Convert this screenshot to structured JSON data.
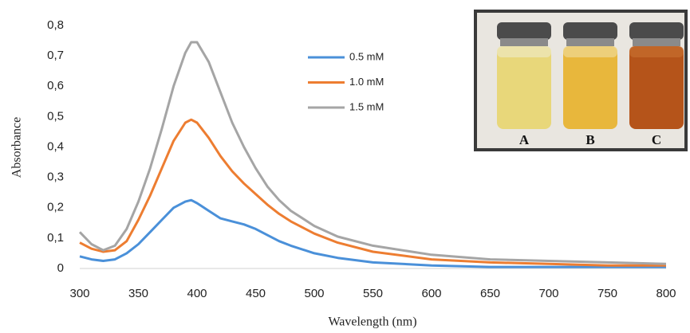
{
  "chart_data": {
    "type": "line",
    "x_label": "Wavelength (nm)",
    "y_label": "Absorbance",
    "x": [
      300,
      310,
      320,
      330,
      340,
      350,
      360,
      370,
      380,
      390,
      395,
      400,
      410,
      420,
      430,
      440,
      450,
      460,
      470,
      480,
      500,
      520,
      550,
      600,
      650,
      700,
      750,
      800
    ],
    "series": [
      {
        "name": "0.5 mM",
        "color": "#4a90d9",
        "values": [
          0.04,
          0.03,
          0.025,
          0.03,
          0.05,
          0.08,
          0.12,
          0.16,
          0.2,
          0.22,
          0.225,
          0.215,
          0.19,
          0.165,
          0.155,
          0.145,
          0.13,
          0.11,
          0.09,
          0.075,
          0.05,
          0.035,
          0.02,
          0.01,
          0.005,
          0.005,
          0.005,
          0.005
        ]
      },
      {
        "name": "1.0 mM",
        "color": "#ed7d31",
        "values": [
          0.085,
          0.065,
          0.055,
          0.06,
          0.09,
          0.16,
          0.24,
          0.33,
          0.42,
          0.48,
          0.49,
          0.48,
          0.43,
          0.37,
          0.32,
          0.28,
          0.245,
          0.21,
          0.18,
          0.155,
          0.115,
          0.085,
          0.055,
          0.03,
          0.02,
          0.015,
          0.01,
          0.01
        ]
      },
      {
        "name": "1.5 mM",
        "color": "#a5a5a5",
        "values": [
          0.12,
          0.08,
          0.06,
          0.075,
          0.13,
          0.22,
          0.33,
          0.46,
          0.6,
          0.71,
          0.745,
          0.745,
          0.68,
          0.58,
          0.48,
          0.4,
          0.33,
          0.27,
          0.225,
          0.19,
          0.14,
          0.105,
          0.075,
          0.045,
          0.03,
          0.025,
          0.02,
          0.015
        ]
      }
    ],
    "xlim": [
      300,
      800
    ],
    "xticks": [
      300,
      350,
      400,
      450,
      500,
      550,
      600,
      650,
      700,
      750,
      800
    ],
    "ylim": [
      0,
      0.8
    ],
    "yticks": [
      0,
      {
        "value": 0.1,
        "label": "0,1"
      },
      {
        "value": 0.2,
        "label": "0,2"
      },
      {
        "value": 0.3,
        "label": "0,3"
      },
      {
        "value": 0.4,
        "label": "0,4"
      },
      {
        "value": 0.5,
        "label": "0,5"
      },
      {
        "value": 0.6,
        "label": "0,6"
      },
      {
        "value": 0.7,
        "label": "0,7"
      },
      {
        "value": 0.8,
        "label": "0,8"
      }
    ],
    "grid": false,
    "inset_labels": [
      "A",
      "B",
      "C"
    ]
  }
}
